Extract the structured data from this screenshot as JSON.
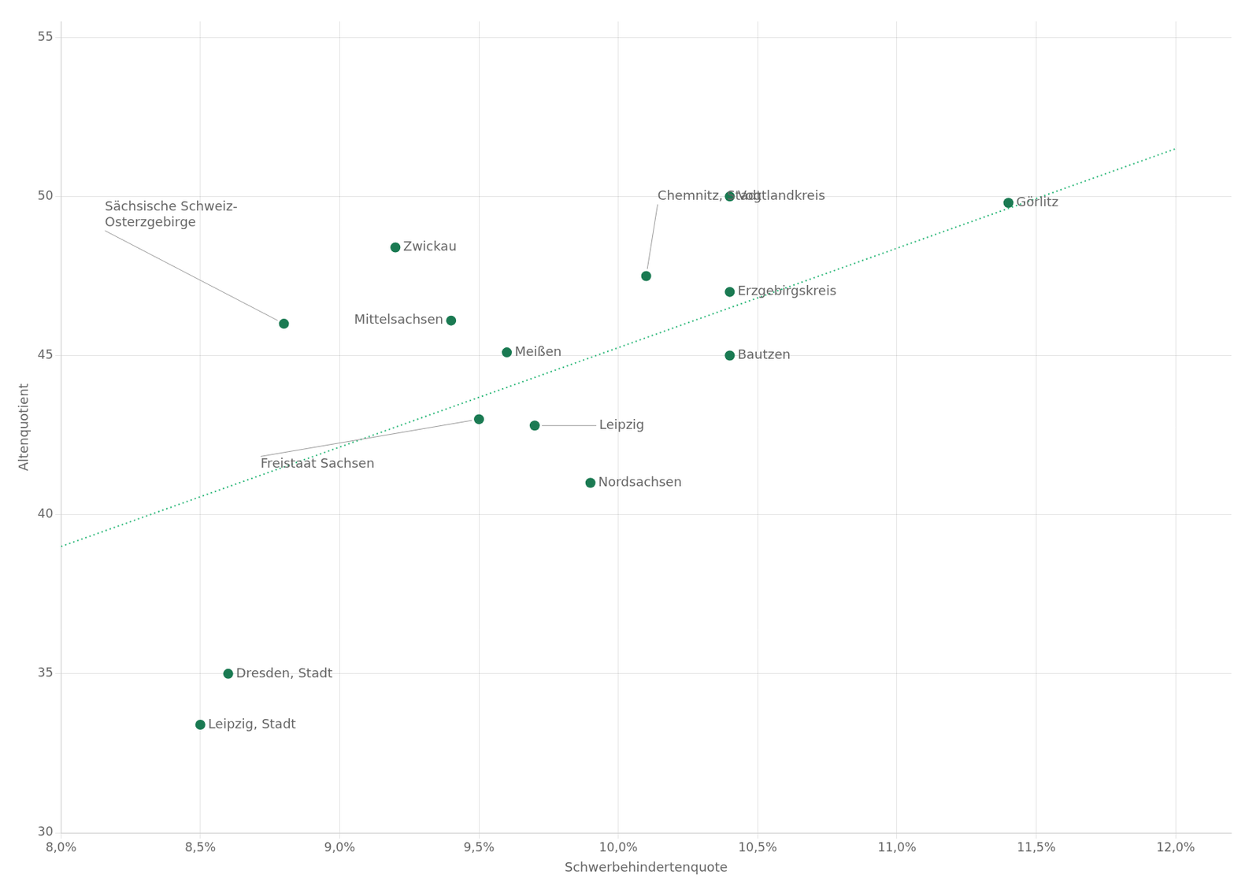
{
  "chart_data": {
    "type": "scatter",
    "xlabel": "Schwerbehindertenquote",
    "ylabel": "Altenquotient",
    "xlim": [
      0.08,
      0.122
    ],
    "ylim": [
      30,
      55.5
    ],
    "xticks": [
      {
        "value": 0.08,
        "label": "8,0%"
      },
      {
        "value": 0.085,
        "label": "8,5%"
      },
      {
        "value": 0.09,
        "label": "9,0%"
      },
      {
        "value": 0.095,
        "label": "9,5%"
      },
      {
        "value": 0.1,
        "label": "10,0%"
      },
      {
        "value": 0.105,
        "label": "10,5%"
      },
      {
        "value": 0.11,
        "label": "11,0%"
      },
      {
        "value": 0.115,
        "label": "11,5%"
      },
      {
        "value": 0.12,
        "label": "12,0%"
      }
    ],
    "yticks": [
      30,
      35,
      40,
      45,
      50,
      55
    ],
    "grid": true,
    "series": [
      {
        "type": "scatter",
        "color": "#1a7a52",
        "x": [
          0.085,
          0.086,
          0.092,
          0.094,
          0.096,
          0.097,
          0.099,
          0.101,
          0.104,
          0.104,
          0.104,
          0.114,
          0.088,
          0.095
        ],
        "values": [
          33.4,
          35.0,
          48.4,
          46.1,
          45.1,
          42.8,
          41.0,
          47.5,
          47.0,
          45.0,
          50.0,
          49.8,
          46.0,
          43.0
        ],
        "labels": [
          "Leipzig, Stadt",
          "Dresden, Stadt",
          "Zwickau",
          "Mittelsachsen",
          "Meißen",
          "Leipzig",
          "Nordsachsen",
          "Chemnitz, Stadt",
          "Erzgebirgskreis",
          "Bautzen",
          "Vogtlandkreis",
          "Görlitz",
          "Sächsische Schweiz-\nOsterzgebirge",
          "Freistaat Sachsen"
        ]
      },
      {
        "type": "line",
        "color": "#2db87a",
        "line_style": "dotted",
        "x": [
          0.08,
          0.12
        ],
        "values": [
          39.0,
          51.5
        ]
      }
    ]
  }
}
